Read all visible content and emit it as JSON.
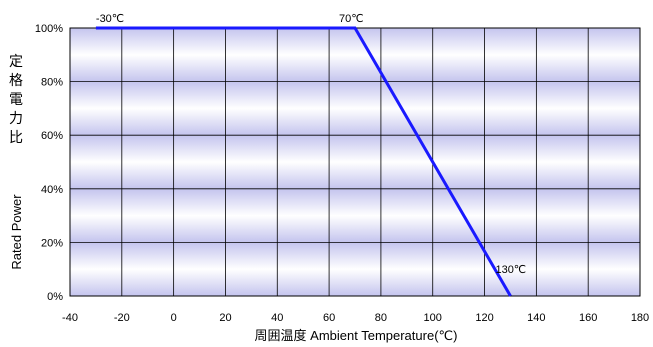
{
  "chart_data": {
    "type": "line",
    "xlabel": "周囲温度  Ambient Temperature(℃)",
    "ylabel_jp": [
      "定",
      "格",
      "電",
      "力",
      "比"
    ],
    "ylabel_en": "Rated Power",
    "xlim": [
      -40,
      180
    ],
    "ylim": [
      0,
      100
    ],
    "x_ticks": [
      "-40",
      "-20",
      "0",
      "20",
      "40",
      "60",
      "80",
      "100",
      "120",
      "140",
      "160",
      "180"
    ],
    "y_ticks": [
      "0%",
      "20%",
      "40%",
      "60%",
      "80%",
      "100%"
    ],
    "grid": true,
    "series": [
      {
        "x": [
          -30,
          70,
          130
        ],
        "y": [
          100,
          100,
          0
        ],
        "color": "#1a1aff"
      }
    ],
    "annotations": [
      {
        "text": "-30℃",
        "x": -30,
        "y": 100
      },
      {
        "text": "70℃",
        "x": 70,
        "y": 100
      },
      {
        "text": "130℃",
        "x": 130,
        "y": 0
      }
    ],
    "background_gradient": [
      "#c8c8f0",
      "#ffffff"
    ]
  }
}
